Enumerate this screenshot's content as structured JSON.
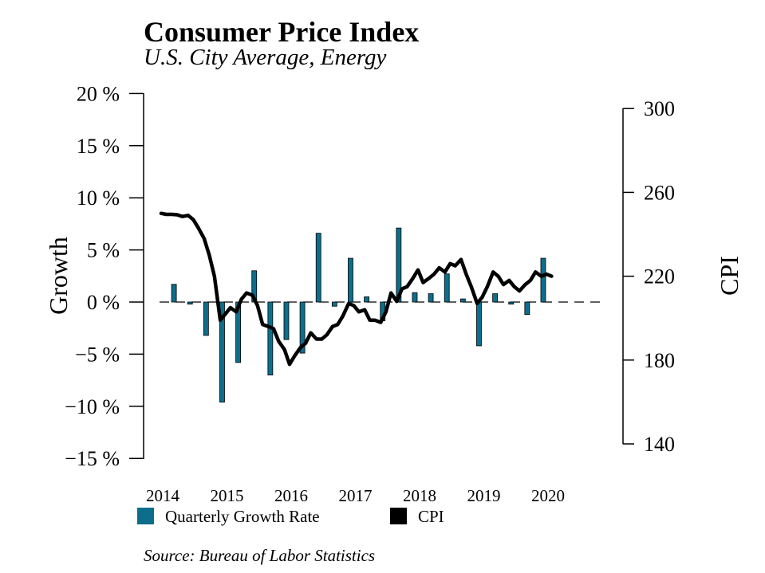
{
  "chart_data": {
    "type": "bar+line",
    "title": "Consumer Price Index",
    "subtitle": "U.S. City Average, Energy",
    "y_left_label": "Growth",
    "y_right_label": "CPI",
    "y_left_ticks": [
      "20 %",
      "15 %",
      "10 %",
      "5 %",
      "0 %",
      "−5 %",
      "−10 %",
      "−15 %"
    ],
    "y_left_tick_values": [
      20,
      15,
      10,
      5,
      0,
      -5,
      -10,
      -15
    ],
    "y_left_range": [
      -15,
      20
    ],
    "y_right_ticks": [
      "300",
      "260",
      "220",
      "180",
      "140"
    ],
    "y_right_tick_values": [
      300,
      260,
      220,
      180,
      140
    ],
    "y_right_range": [
      140,
      300
    ],
    "x_range": [
      2014,
      2020.9
    ],
    "x_ticks": [
      "2014",
      "2015",
      "2016",
      "2017",
      "2018",
      "2019",
      "2020"
    ],
    "x_tick_values": [
      2014,
      2015,
      2016,
      2017,
      2018,
      2019,
      2020
    ],
    "bar_series": {
      "name": "Quarterly Growth Rate",
      "color": "#0d6e8c",
      "x": [
        2014.2,
        2014.45,
        2014.7,
        2014.95,
        2015.2,
        2015.45,
        2015.7,
        2015.95,
        2016.2,
        2016.45,
        2016.7,
        2016.95,
        2017.2,
        2017.45,
        2017.7,
        2017.95,
        2018.2,
        2018.45,
        2018.7,
        2018.95,
        2019.2,
        2019.45,
        2019.7,
        2019.95,
        2020.2
      ],
      "values": [
        1.7,
        -0.2,
        -3.2,
        -9.6,
        -5.8,
        3.0,
        -7.0,
        -3.6,
        -4.9,
        6.6,
        -0.4,
        4.2,
        0.5,
        -1.8,
        7.1,
        0.9,
        0.8,
        2.7,
        0.3,
        -4.2,
        0.8,
        -0.2,
        -1.2,
        4.2,
        0.0
      ]
    },
    "line_series": {
      "name": "CPI",
      "color": "#000000",
      "x": [
        2014.0,
        2014.08,
        2014.17,
        2014.25,
        2014.33,
        2014.42,
        2014.5,
        2014.58,
        2014.67,
        2014.75,
        2014.83,
        2014.92,
        2015.0,
        2015.08,
        2015.17,
        2015.25,
        2015.33,
        2015.42,
        2015.5,
        2015.58,
        2015.67,
        2015.75,
        2015.83,
        2015.92,
        2016.0,
        2016.08,
        2016.17,
        2016.25,
        2016.33,
        2016.42,
        2016.5,
        2016.58,
        2016.67,
        2016.75,
        2016.83,
        2016.92,
        2017.0,
        2017.08,
        2017.17,
        2017.25,
        2017.33,
        2017.42,
        2017.5,
        2017.58,
        2017.67,
        2017.75,
        2017.83,
        2017.92,
        2018.0,
        2018.08,
        2018.17,
        2018.25,
        2018.33,
        2018.42,
        2018.5,
        2018.58,
        2018.67,
        2018.75,
        2018.83,
        2018.92,
        2019.0,
        2019.08,
        2019.17,
        2019.25,
        2019.33,
        2019.42,
        2019.5,
        2019.58,
        2019.67,
        2019.75,
        2019.83,
        2019.92,
        2020.0,
        2020.08
      ],
      "values": [
        250,
        249.5,
        249.5,
        249.3,
        248.5,
        249,
        247,
        243,
        238,
        230,
        220,
        199,
        202,
        205,
        203,
        209,
        212,
        211,
        206,
        197,
        196,
        195,
        189,
        185,
        178,
        182,
        186,
        188,
        193,
        190,
        190,
        192,
        196,
        197,
        201,
        207,
        206,
        203,
        204,
        199,
        199,
        198,
        203,
        212,
        208,
        214,
        215,
        219,
        223,
        217,
        219,
        221,
        224,
        222,
        226,
        225,
        228,
        221,
        215,
        207,
        210,
        215,
        222,
        220,
        216,
        218,
        215,
        213,
        216,
        218,
        222,
        220,
        221,
        220
      ]
    },
    "zero_line": "dashed",
    "legend": [
      "Quarterly Growth Rate",
      "CPI"
    ],
    "legend_placement": "bottom-left",
    "grid": false,
    "source": "Source: Bureau of Labor Statistics"
  }
}
